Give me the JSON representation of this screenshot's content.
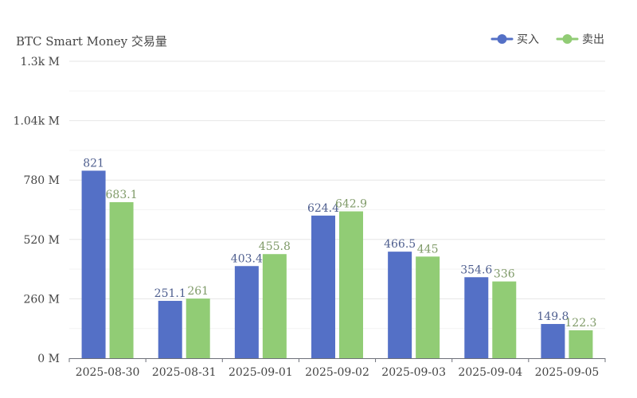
{
  "chart_data": {
    "type": "bar",
    "title": "BTC Smart Money 交易量",
    "categories": [
      "2025-08-30",
      "2025-08-31",
      "2025-09-01",
      "2025-09-02",
      "2025-09-03",
      "2025-09-04",
      "2025-09-05"
    ],
    "series": [
      {
        "name": "买入",
        "color": "#5470c6",
        "values": [
          821,
          251.1,
          403.4,
          624.4,
          466.5,
          354.6,
          149.8
        ]
      },
      {
        "name": "卖出",
        "color": "#91cc75",
        "values": [
          683.1,
          261,
          455.8,
          642.9,
          445,
          336,
          122.3
        ]
      }
    ],
    "ylim": [
      0,
      1300
    ],
    "y_ticks": [
      {
        "value": 0,
        "label": "0 M"
      },
      {
        "value": 260,
        "label": "260 M"
      },
      {
        "value": 520,
        "label": "520 M"
      },
      {
        "value": 780,
        "label": "780 M"
      },
      {
        "value": 1040,
        "label": "1.04k M"
      },
      {
        "value": 1300,
        "label": "1.3k M"
      }
    ],
    "minor_grid_step": 130,
    "legend_position": "top-right",
    "grid": true
  }
}
